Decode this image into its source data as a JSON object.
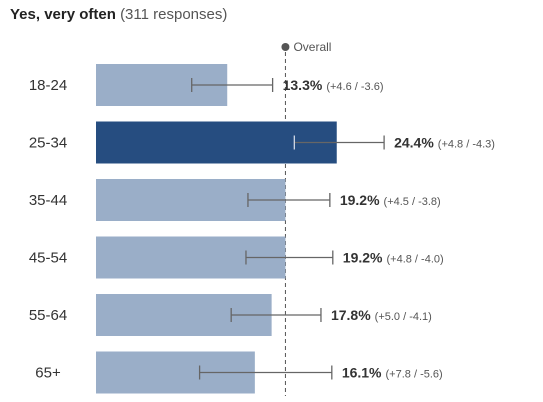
{
  "chart_data": {
    "type": "bar",
    "title": "Yes, very often",
    "subtitle": "(311 responses)",
    "categories": [
      "18-24",
      "25-34",
      "35-44",
      "45-54",
      "55-64",
      "65+"
    ],
    "values": [
      13.3,
      24.4,
      19.2,
      19.2,
      17.8,
      16.1
    ],
    "value_labels": [
      "13.3%",
      "24.4%",
      "19.2%",
      "19.2%",
      "17.8%",
      "16.1%"
    ],
    "error_plus": [
      4.6,
      4.8,
      4.5,
      4.8,
      5.0,
      7.8
    ],
    "error_minus": [
      3.6,
      4.3,
      3.8,
      4.0,
      4.1,
      5.6
    ],
    "error_labels": [
      "(+4.6 / -3.6)",
      "(+4.8 / -4.3)",
      "(+4.5 / -3.8)",
      "(+4.8 / -4.0)",
      "(+5.0 / -4.1)",
      "(+7.8 / -5.6)"
    ],
    "overall": {
      "label": "Overall",
      "value": 19.2
    },
    "highlight_index": 1,
    "colors": {
      "bar": "#9aaec8",
      "bar_highlight": "#264d80",
      "error": "#666666",
      "overall_line": "#555555"
    },
    "xlim": [
      0,
      30
    ]
  }
}
